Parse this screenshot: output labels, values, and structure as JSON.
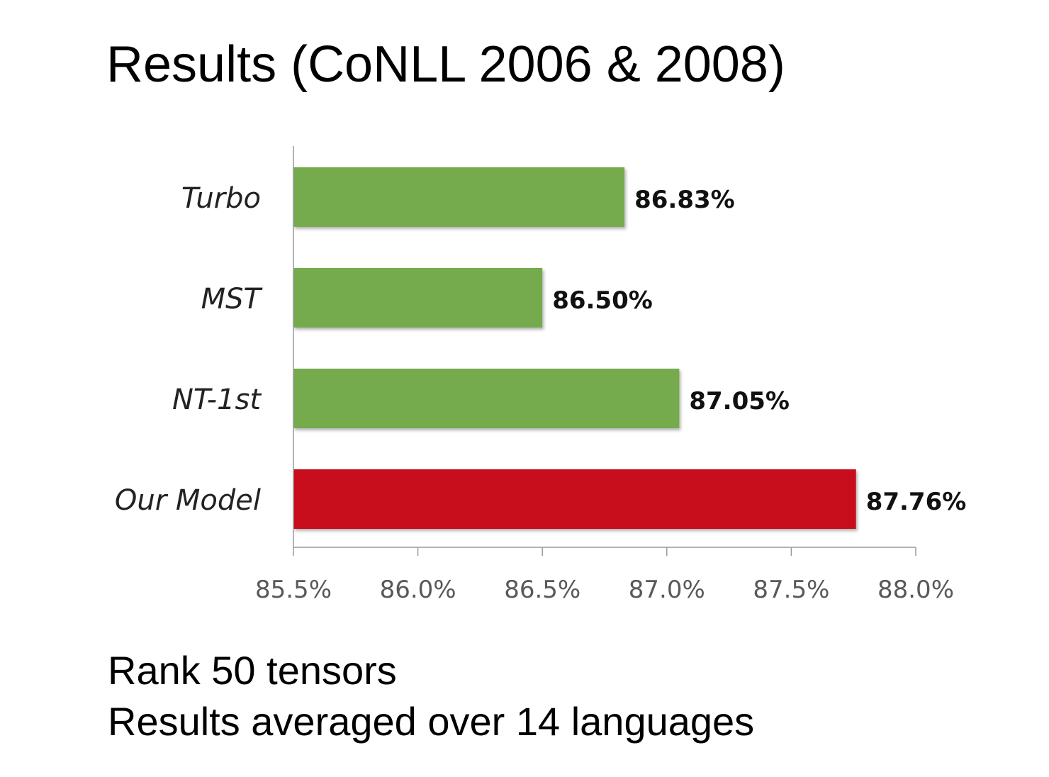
{
  "slide": {
    "title": "Results (CoNLL 2006 & 2008)",
    "notes": [
      "Rank 50 tensors",
      "Results averaged over 14 languages"
    ]
  },
  "chart_data": {
    "type": "bar",
    "orientation": "horizontal",
    "categories": [
      "Turbo",
      "MST",
      "NT-1st",
      "Our Model"
    ],
    "values": [
      86.83,
      86.5,
      87.05,
      87.76
    ],
    "value_labels": [
      "86.83%",
      "86.50%",
      "87.05%",
      "87.76%"
    ],
    "bar_colors": [
      "#75ab4e",
      "#75ab4e",
      "#75ab4e",
      "#c8091a"
    ],
    "xlim": [
      85.5,
      88.0
    ],
    "x_ticks": [
      85.5,
      86.0,
      86.5,
      87.0,
      87.5,
      88.0
    ],
    "x_tick_labels": [
      "85.5%",
      "86.0%",
      "86.5%",
      "87.0%",
      "87.5%",
      "88.0%"
    ],
    "title": "",
    "xlabel": "",
    "ylabel": "",
    "grid": false,
    "legend": false
  }
}
